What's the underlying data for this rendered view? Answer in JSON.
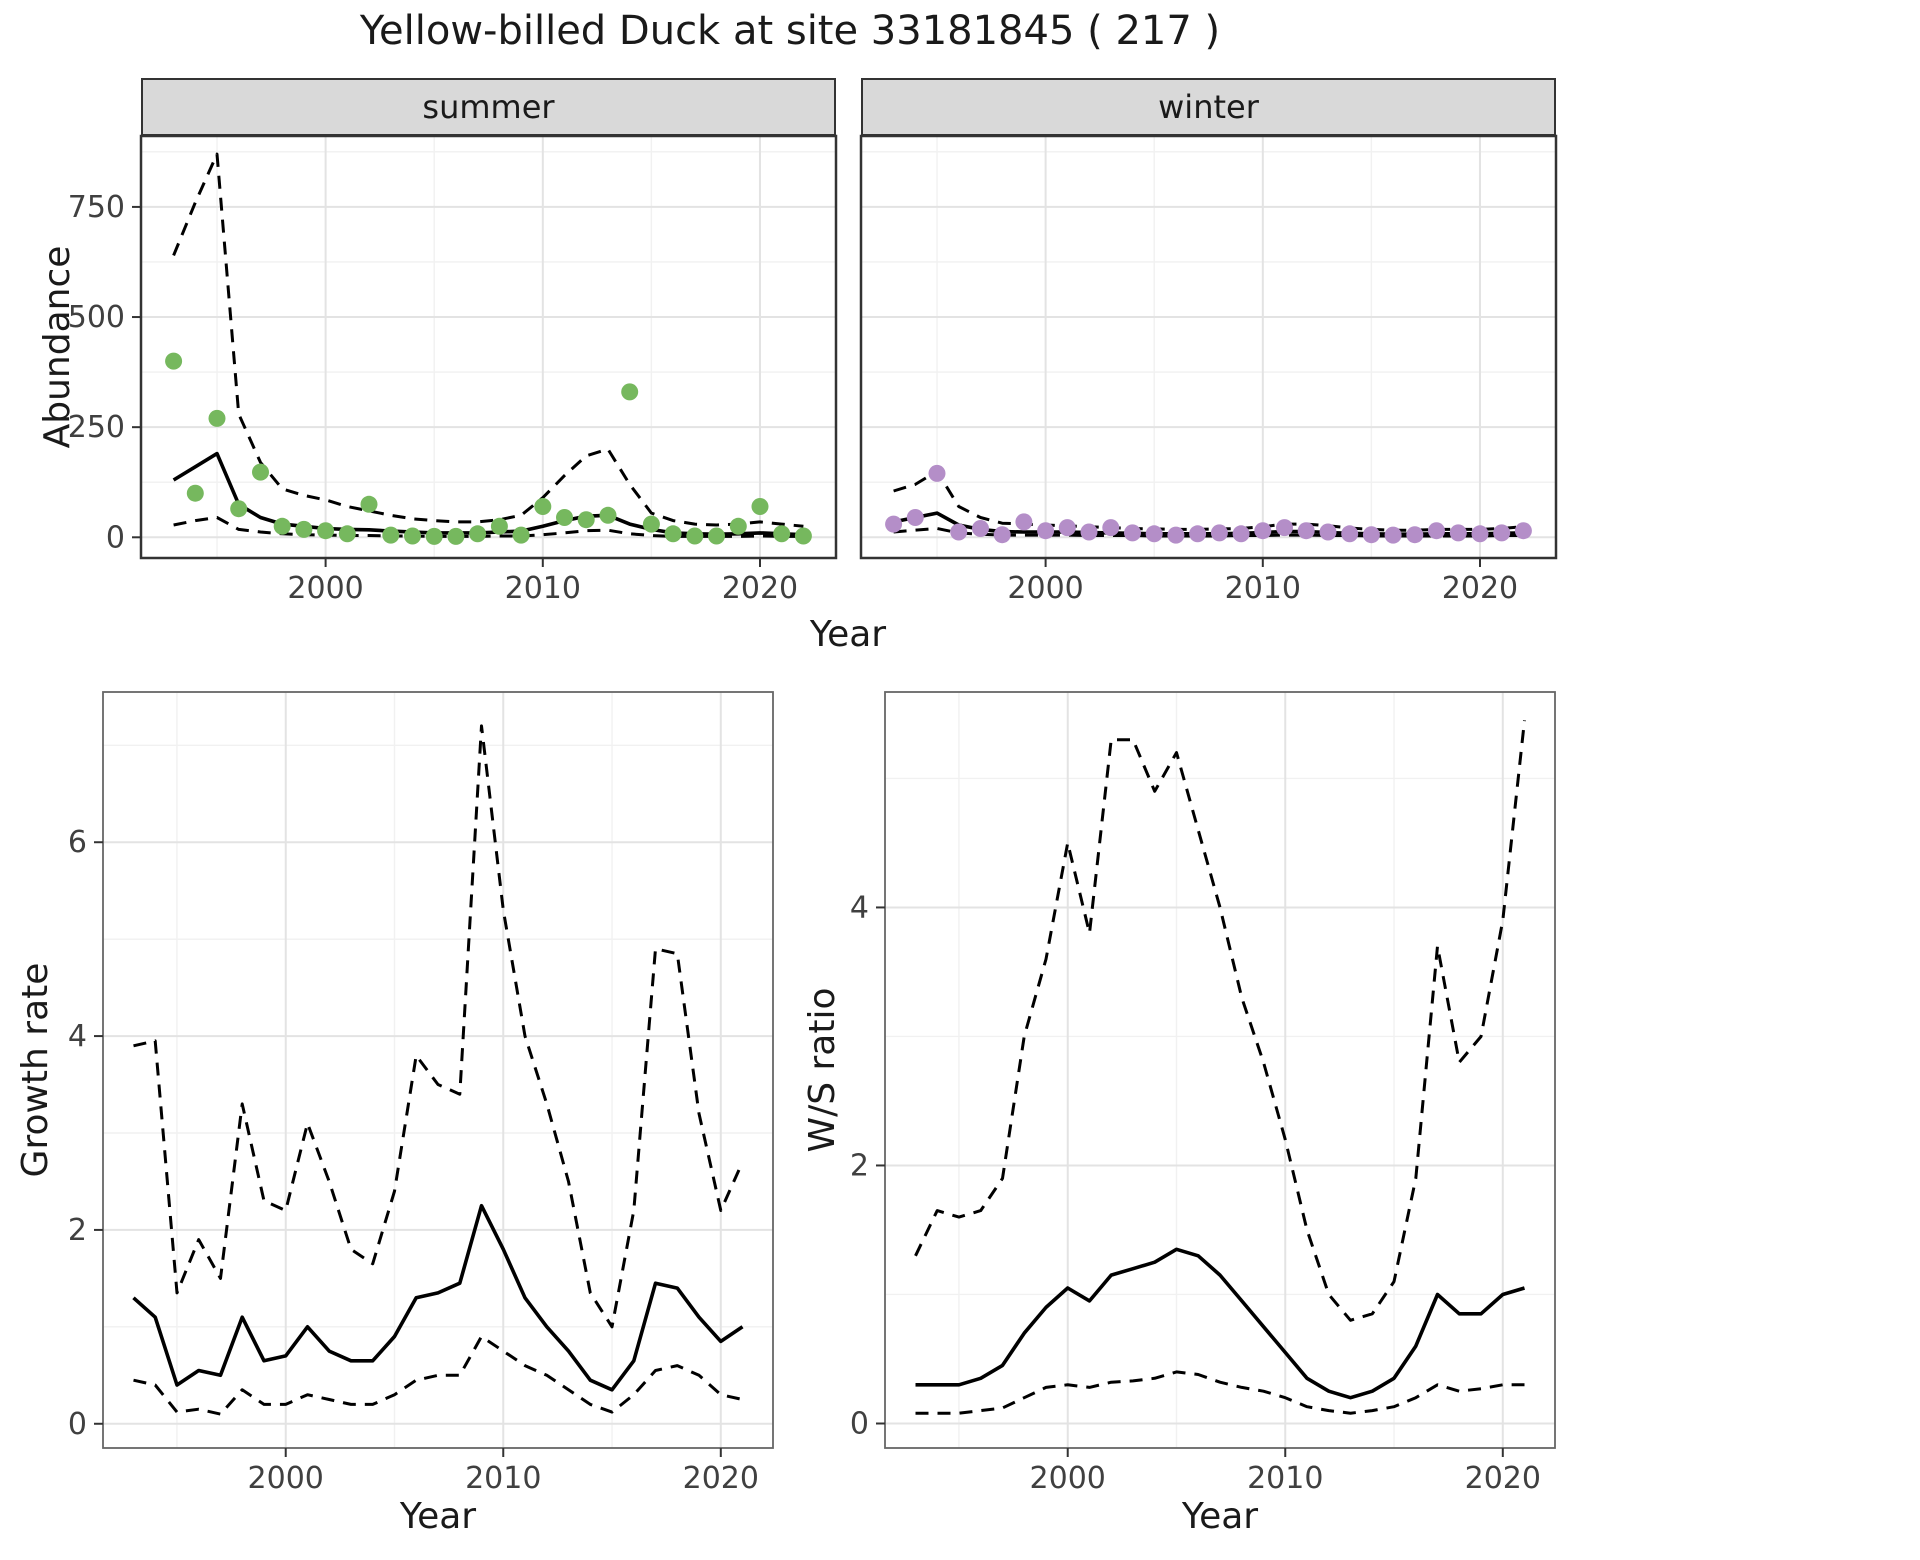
{
  "title": "Yellow-billed Duck at site 33181845 ( 217 )",
  "facets": [
    {
      "label": "summer"
    },
    {
      "label": "winter"
    }
  ],
  "axes": {
    "year_label": "Year",
    "abundance_label": "Abundance",
    "growth_label": "Growth rate",
    "ws_label": "W/S ratio"
  },
  "colors": {
    "summer_point": "#76b85e",
    "winter_point": "#b48ec8",
    "line": "#000000",
    "strip_fill": "#d9d9d9",
    "grid_major": "#e3e3e3",
    "grid_minor": "#f1f1f1",
    "panel_border_top": "#333333",
    "panel_border_bottom": "#666666"
  },
  "chart_data": [
    {
      "id": "abundance_summer",
      "type": "scatter",
      "facet": "summer",
      "xlabel": "Year",
      "ylabel": "Abundance",
      "xlim": [
        1991.5,
        2023.5
      ],
      "ylim": [
        -47,
        911
      ],
      "xticks": [
        2000,
        2010,
        2020
      ],
      "yticks": [
        0,
        250,
        500,
        750
      ],
      "point_color": "#76b85e",
      "years": [
        1993,
        1994,
        1995,
        1996,
        1997,
        1998,
        1999,
        2000,
        2001,
        2002,
        2003,
        2004,
        2005,
        2006,
        2007,
        2008,
        2009,
        2010,
        2011,
        2012,
        2013,
        2014,
        2015,
        2016,
        2017,
        2018,
        2019,
        2020,
        2021,
        2022
      ],
      "observed": [
        400,
        100,
        270,
        65,
        148,
        25,
        18,
        15,
        8,
        75,
        5,
        3,
        2,
        2,
        8,
        25,
        5,
        70,
        45,
        40,
        50,
        330,
        30,
        8,
        3,
        3,
        25,
        70,
        8,
        3
      ],
      "fit": [
        130,
        160,
        190,
        75,
        45,
        30,
        25,
        20,
        18,
        17,
        14,
        12,
        10,
        10,
        10,
        12,
        14,
        25,
        38,
        48,
        50,
        30,
        18,
        10,
        8,
        7,
        8,
        10,
        8,
        6
      ],
      "upper": [
        640,
        760,
        870,
        280,
        170,
        110,
        95,
        85,
        70,
        60,
        50,
        42,
        38,
        35,
        35,
        40,
        50,
        90,
        140,
        185,
        200,
        120,
        55,
        38,
        30,
        28,
        30,
        35,
        30,
        25
      ],
      "lower": [
        28,
        38,
        45,
        18,
        12,
        8,
        6,
        5,
        4,
        4,
        3,
        3,
        2,
        2,
        2,
        3,
        3,
        6,
        10,
        15,
        16,
        8,
        4,
        2,
        2,
        2,
        2,
        3,
        2,
        2
      ]
    },
    {
      "id": "abundance_winter",
      "type": "scatter",
      "facet": "winter",
      "xlabel": "Year",
      "ylabel": "Abundance",
      "xlim": [
        1991.5,
        2023.5
      ],
      "ylim": [
        -47,
        911
      ],
      "xticks": [
        2000,
        2010,
        2020
      ],
      "yticks": [
        0,
        250,
        500,
        750
      ],
      "point_color": "#b48ec8",
      "years": [
        1993,
        1994,
        1995,
        1996,
        1997,
        1998,
        1999,
        2000,
        2001,
        2002,
        2003,
        2004,
        2005,
        2006,
        2007,
        2008,
        2009,
        2010,
        2011,
        2012,
        2013,
        2014,
        2015,
        2016,
        2017,
        2018,
        2019,
        2020,
        2021,
        2022
      ],
      "observed": [
        30,
        45,
        145,
        12,
        20,
        6,
        35,
        15,
        22,
        12,
        22,
        10,
        8,
        5,
        8,
        10,
        8,
        15,
        22,
        15,
        12,
        8,
        6,
        5,
        6,
        15,
        10,
        8,
        10,
        15
      ],
      "fit": [
        35,
        45,
        55,
        28,
        18,
        13,
        12,
        12,
        12,
        11,
        10,
        9,
        8,
        8,
        8,
        8,
        9,
        11,
        13,
        13,
        11,
        9,
        8,
        7,
        7,
        8,
        8,
        8,
        9,
        10
      ],
      "upper": [
        105,
        120,
        150,
        70,
        45,
        32,
        30,
        28,
        26,
        24,
        22,
        20,
        19,
        18,
        18,
        19,
        20,
        24,
        30,
        30,
        26,
        21,
        18,
        16,
        16,
        18,
        18,
        18,
        20,
        24
      ],
      "lower": [
        12,
        16,
        20,
        10,
        7,
        5,
        5,
        5,
        5,
        4,
        4,
        4,
        3,
        3,
        3,
        3,
        4,
        4,
        5,
        5,
        4,
        4,
        3,
        3,
        3,
        3,
        3,
        3,
        4,
        4
      ]
    },
    {
      "id": "growth_rate",
      "type": "line",
      "xlabel": "Year",
      "ylabel": "Growth rate",
      "xlim": [
        1991.6,
        2022.4
      ],
      "ylim": [
        -0.25,
        7.55
      ],
      "xticks": [
        2000,
        2010,
        2020
      ],
      "yticks": [
        0,
        2,
        4,
        6
      ],
      "years": [
        1993,
        1994,
        1995,
        1996,
        1997,
        1998,
        1999,
        2000,
        2001,
        2002,
        2003,
        2004,
        2005,
        2006,
        2007,
        2008,
        2009,
        2010,
        2011,
        2012,
        2013,
        2014,
        2015,
        2016,
        2017,
        2018,
        2019,
        2020,
        2021
      ],
      "fit": [
        1.3,
        1.1,
        0.4,
        0.55,
        0.5,
        1.1,
        0.65,
        0.7,
        1.0,
        0.75,
        0.65,
        0.65,
        0.9,
        1.3,
        1.35,
        1.45,
        2.25,
        1.8,
        1.3,
        1.0,
        0.75,
        0.45,
        0.35,
        0.65,
        1.45,
        1.4,
        1.1,
        0.85,
        1.0
      ],
      "upper": [
        3.9,
        3.95,
        1.35,
        1.9,
        1.5,
        3.3,
        2.3,
        2.2,
        3.1,
        2.5,
        1.8,
        1.65,
        2.4,
        3.8,
        3.5,
        3.4,
        7.2,
        5.3,
        4.0,
        3.3,
        2.5,
        1.35,
        1.0,
        2.2,
        4.9,
        4.85,
        3.2,
        2.2,
        2.7
      ],
      "lower": [
        0.45,
        0.4,
        0.12,
        0.15,
        0.1,
        0.35,
        0.2,
        0.2,
        0.3,
        0.25,
        0.2,
        0.2,
        0.3,
        0.45,
        0.5,
        0.5,
        0.9,
        0.75,
        0.6,
        0.5,
        0.35,
        0.2,
        0.12,
        0.3,
        0.55,
        0.6,
        0.5,
        0.3,
        0.25
      ]
    },
    {
      "id": "ws_ratio",
      "type": "line",
      "xlabel": "Year",
      "ylabel": "W/S ratio",
      "xlim": [
        1991.6,
        2022.4
      ],
      "ylim": [
        -0.19,
        5.67
      ],
      "xticks": [
        2000,
        2010,
        2020
      ],
      "yticks": [
        0,
        2,
        4
      ],
      "years": [
        1993,
        1994,
        1995,
        1996,
        1997,
        1998,
        1999,
        2000,
        2001,
        2002,
        2003,
        2004,
        2005,
        2006,
        2007,
        2008,
        2009,
        2010,
        2011,
        2012,
        2013,
        2014,
        2015,
        2016,
        2017,
        2018,
        2019,
        2020,
        2021
      ],
      "fit": [
        0.3,
        0.3,
        0.3,
        0.35,
        0.45,
        0.7,
        0.9,
        1.05,
        0.95,
        1.15,
        1.2,
        1.25,
        1.35,
        1.3,
        1.15,
        0.95,
        0.75,
        0.55,
        0.35,
        0.25,
        0.2,
        0.25,
        0.35,
        0.6,
        1.0,
        0.85,
        0.85,
        1.0,
        1.05
      ],
      "upper": [
        1.3,
        1.65,
        1.6,
        1.65,
        1.9,
        3.0,
        3.6,
        4.5,
        3.8,
        5.3,
        5.3,
        4.9,
        5.2,
        4.6,
        4.0,
        3.3,
        2.8,
        2.2,
        1.5,
        1.0,
        0.8,
        0.85,
        1.1,
        1.9,
        3.7,
        2.8,
        3.0,
        3.9,
        5.45
      ],
      "lower": [
        0.08,
        0.08,
        0.08,
        0.1,
        0.12,
        0.2,
        0.28,
        0.3,
        0.28,
        0.32,
        0.33,
        0.35,
        0.4,
        0.38,
        0.32,
        0.28,
        0.25,
        0.2,
        0.13,
        0.1,
        0.08,
        0.1,
        0.13,
        0.2,
        0.3,
        0.25,
        0.27,
        0.3,
        0.3
      ]
    }
  ]
}
